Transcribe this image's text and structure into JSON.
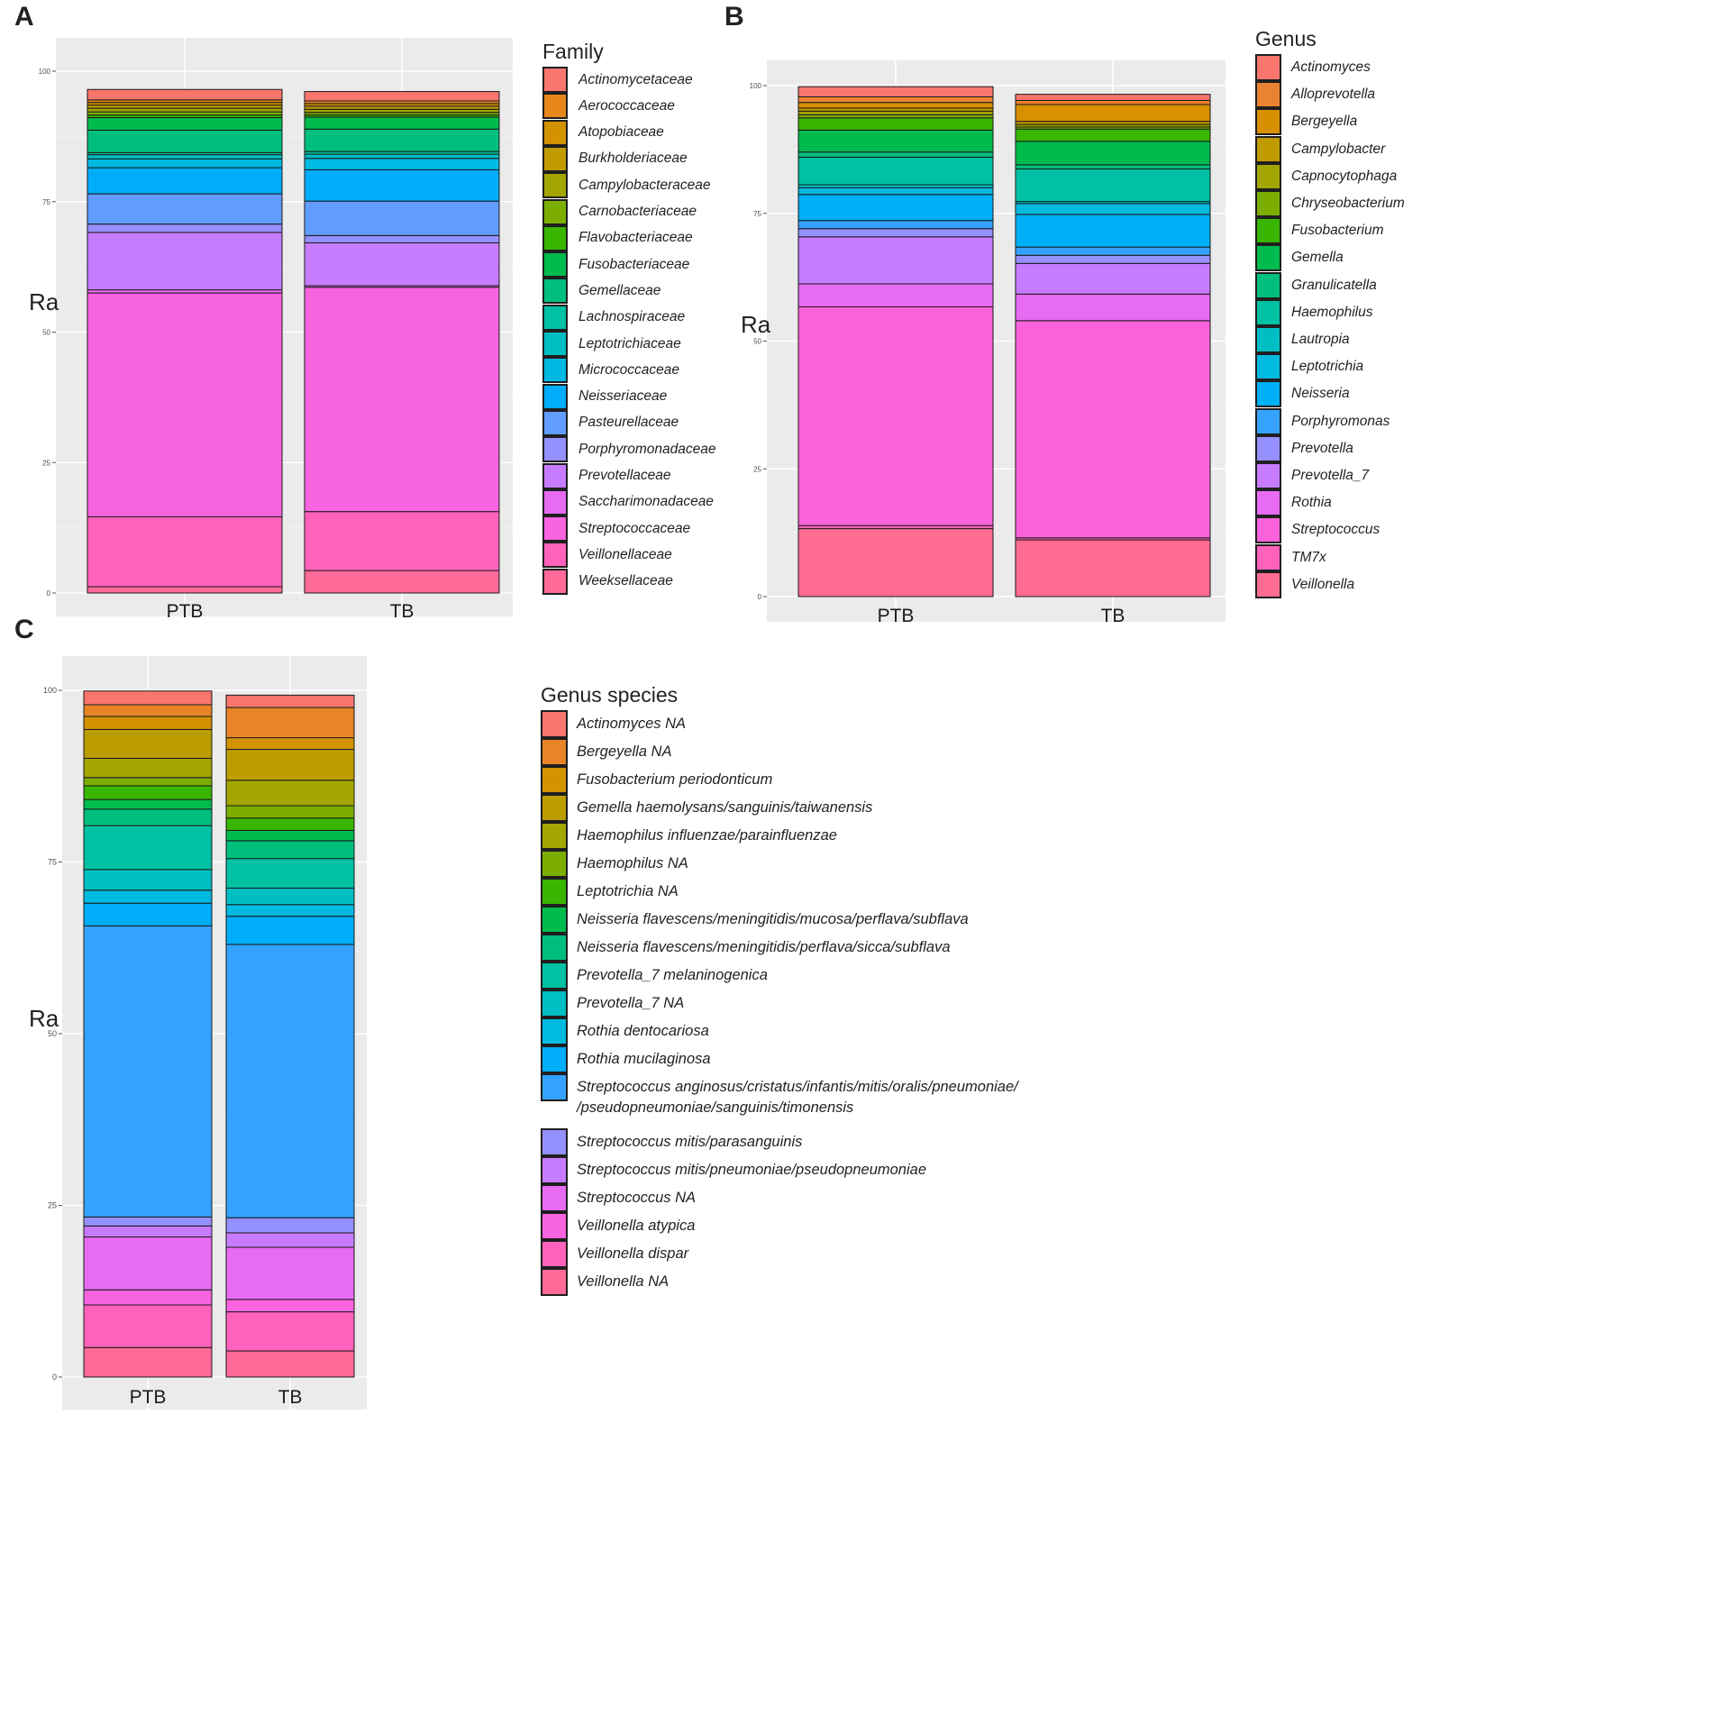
{
  "colors": {
    "a": [
      "#F8766D",
      "#E7861B",
      "#D39200",
      "#C09B00",
      "#A3A500",
      "#7CAE00",
      "#39B600",
      "#00BB4E",
      "#00BF7D",
      "#00C1A3",
      "#00BFC4",
      "#00B9E3",
      "#00ADFA",
      "#619CFF",
      "#9590FF",
      "#C77CFF",
      "#E76BF3",
      "#F863DF",
      "#FF62BC",
      "#FF6A98"
    ],
    "b": [
      "#F8766D",
      "#EA8331",
      "#D89000",
      "#C09B00",
      "#A3A500",
      "#7CAE00",
      "#39B600",
      "#00BB4E",
      "#00BF7D",
      "#00C1A3",
      "#00BFC4",
      "#00BAE0",
      "#00B0F6",
      "#35A2FF",
      "#9590FF",
      "#C77CFF",
      "#E76BF3",
      "#FA62DB",
      "#FF62BC",
      "#FF6C91"
    ],
    "c": [
      "#F8766D",
      "#E88526",
      "#D39200",
      "#BC9D00",
      "#A3A500",
      "#7CAE00",
      "#39B600",
      "#00BB4E",
      "#00BF7D",
      "#00C1A3",
      "#00BFC4",
      "#00BAE0",
      "#00ADFA",
      "#35A2FF",
      "#9590FF",
      "#C77CFF",
      "#E76BF3",
      "#F863DF",
      "#FF62BC",
      "#FF6A98"
    ]
  },
  "chart_data": [
    {
      "panel": "A",
      "type": "bar",
      "stacked": true,
      "ylabel": "Ra",
      "ylim": [
        0,
        100
      ],
      "yticks": [
        "0",
        "25",
        "50",
        "75",
        "100"
      ],
      "categories": [
        "PTB",
        "TB"
      ],
      "legend_title": "Family",
      "series": [
        {
          "name": "Actinomycetaceae",
          "values": [
            2.0,
            1.8
          ]
        },
        {
          "name": "Aerococcaceae",
          "values": [
            0.5,
            0.5
          ]
        },
        {
          "name": "Atopobiaceae",
          "values": [
            0.5,
            0.5
          ]
        },
        {
          "name": "Burkholderiaceae",
          "values": [
            0.6,
            0.6
          ]
        },
        {
          "name": "Campylobacteraceae",
          "values": [
            0.7,
            0.6
          ]
        },
        {
          "name": "Carnobacteriaceae",
          "values": [
            0.6,
            0.5
          ]
        },
        {
          "name": "Flavobacteriaceae",
          "values": [
            0.5,
            0.4
          ]
        },
        {
          "name": "Fusobacteriaceae",
          "values": [
            2.4,
            2.3
          ]
        },
        {
          "name": "Gemellaceae",
          "values": [
            4.3,
            4.3
          ]
        },
        {
          "name": "Lachnospiraceae",
          "values": [
            0.4,
            0.5
          ]
        },
        {
          "name": "Leptotrichiaceae",
          "values": [
            0.8,
            0.8
          ]
        },
        {
          "name": "Micrococcaceae",
          "values": [
            1.7,
            2.2
          ]
        },
        {
          "name": "Neisseriaceae",
          "values": [
            5.0,
            6.0
          ]
        },
        {
          "name": "Pasteurellaceae",
          "values": [
            5.8,
            6.6
          ]
        },
        {
          "name": "Porphyromonadaceae",
          "values": [
            1.6,
            1.4
          ]
        },
        {
          "name": "Prevotellaceae",
          "values": [
            11.0,
            8.2
          ]
        },
        {
          "name": "Saccharimonadaceae",
          "values": [
            0.6,
            0.3
          ]
        },
        {
          "name": "Streptococcaceae",
          "values": [
            42.9,
            43.0
          ]
        },
        {
          "name": "Veillonellaceae",
          "values": [
            13.4,
            11.3
          ]
        },
        {
          "name": "Weeksellaceae",
          "values": [
            1.2,
            4.3
          ]
        }
      ]
    },
    {
      "panel": "B",
      "type": "bar",
      "stacked": true,
      "ylabel": "Ra",
      "ylim": [
        0,
        100
      ],
      "yticks": [
        "0",
        "25",
        "50",
        "75",
        "100"
      ],
      "categories": [
        "PTB",
        "TB"
      ],
      "legend_title": "Genus",
      "series": [
        {
          "name": "Actinomyces",
          "values": [
            2.0,
            1.2
          ]
        },
        {
          "name": "Alloprevotella",
          "values": [
            1.1,
            0.8
          ]
        },
        {
          "name": "Bergeyella",
          "values": [
            1.1,
            3.3
          ]
        },
        {
          "name": "Campylobacter",
          "values": [
            0.6,
            0.6
          ]
        },
        {
          "name": "Capnocytophaga",
          "values": [
            0.7,
            0.5
          ]
        },
        {
          "name": "Chryseobacterium",
          "values": [
            0.6,
            0.4
          ]
        },
        {
          "name": "Fusobacterium",
          "values": [
            2.4,
            2.4
          ]
        },
        {
          "name": "Gemella",
          "values": [
            4.3,
            4.6
          ]
        },
        {
          "name": "Granulicatella",
          "values": [
            1.0,
            0.8
          ]
        },
        {
          "name": "Haemophilus",
          "values": [
            5.4,
            6.4
          ]
        },
        {
          "name": "Lautropia",
          "values": [
            0.6,
            0.4
          ]
        },
        {
          "name": "Leptotrichia",
          "values": [
            1.3,
            2.1
          ]
        },
        {
          "name": "Neisseria",
          "values": [
            5.1,
            6.4
          ]
        },
        {
          "name": "Porphyromonas",
          "values": [
            1.6,
            1.6
          ]
        },
        {
          "name": "Prevotella",
          "values": [
            1.6,
            1.6
          ]
        },
        {
          "name": "Prevotella_7",
          "values": [
            9.2,
            6.0
          ]
        },
        {
          "name": "Rothia",
          "values": [
            4.5,
            5.2
          ]
        },
        {
          "name": "Streptococcus",
          "values": [
            42.8,
            42.5
          ]
        },
        {
          "name": "TM7x",
          "values": [
            0.6,
            0.4
          ]
        },
        {
          "name": "Veillonella",
          "values": [
            13.3,
            11.1
          ]
        }
      ]
    },
    {
      "panel": "C",
      "type": "bar",
      "stacked": true,
      "ylabel": "Ra",
      "ylim": [
        0,
        100
      ],
      "yticks": [
        "0",
        "25",
        "50",
        "75",
        "100"
      ],
      "categories": [
        "PTB",
        "TB"
      ],
      "legend_title": "Genus species",
      "series": [
        {
          "name": "Actinomyces NA",
          "values": [
            2.0,
            1.8
          ],
          "label": "Actinomyces NA"
        },
        {
          "name": "Bergeyella NA",
          "values": [
            1.7,
            4.4
          ],
          "label": "Bergeyella NA"
        },
        {
          "name": "Fusobacterium periodonticum",
          "values": [
            1.9,
            1.7
          ],
          "label": "Fusobacterium periodonticum"
        },
        {
          "name": "Gemella haemolysans/sanguinis/taiwanensis",
          "values": [
            4.2,
            4.5
          ],
          "label": "Gemella haemolysans/sanguinis/taiwanensis"
        },
        {
          "name": "Haemophilus influenzae/parainfluenzae",
          "values": [
            2.8,
            3.7
          ],
          "label": "Haemophilus influenzae/parainfluenzae"
        },
        {
          "name": "Haemophilus NA",
          "values": [
            1.2,
            1.8
          ],
          "label": "Haemophilus NA"
        },
        {
          "name": "Leptotrichia NA",
          "values": [
            2.0,
            1.8
          ],
          "label": "Leptotrichia NA"
        },
        {
          "name": "Neisseria flavescens/meningitidis/mucosa/perflava/subflava",
          "values": [
            1.4,
            1.5
          ],
          "label": "Neisseria flavescens/meningitidis/mucosa/perflava/subflava"
        },
        {
          "name": "Neisseria flavescens/meningitidis/perflava/sicca/subflava",
          "values": [
            2.4,
            2.6
          ],
          "label": "Neisseria flavescens/meningitidis/perflava/sicca/subflava"
        },
        {
          "name": "Prevotella_7 melaninogenica",
          "values": [
            6.4,
            4.3
          ],
          "label": "Prevotella_7 melaninogenica"
        },
        {
          "name": "Prevotella_7 NA",
          "values": [
            3.0,
            2.4
          ],
          "label": "Prevotella_7 NA"
        },
        {
          "name": "Rothia dentocariosa",
          "values": [
            1.9,
            1.7
          ],
          "label": "Rothia dentocariosa"
        },
        {
          "name": "Rothia mucilaginosa",
          "values": [
            3.3,
            4.1
          ],
          "label": "Rothia mucilaginosa"
        },
        {
          "name": "Streptococcus anginosus/cristatus/infantis/mitis/oralis/pneumoniae//pseudopneumoniae/sanguinis/timonensis",
          "values": [
            42.4,
            39.8
          ],
          "label": "Streptococcus anginosus/cristatus/infantis/mitis/oralis/pneumoniae/",
          "label2": "/pseudopneumoniae/sanguinis/timonensis"
        },
        {
          "name": "Streptococcus mitis/parasanguinis",
          "values": [
            1.3,
            2.2
          ],
          "label": "Streptococcus mitis/parasanguinis"
        },
        {
          "name": "Streptococcus mitis/pneumoniae/pseudopneumoniae",
          "values": [
            1.6,
            2.1
          ],
          "label": "Streptococcus mitis/pneumoniae/pseudopneumoniae"
        },
        {
          "name": "Streptococcus NA",
          "values": [
            7.7,
            7.6
          ],
          "label": "Streptococcus NA"
        },
        {
          "name": "Veillonella atypica",
          "values": [
            2.2,
            1.8
          ],
          "label": "Veillonella atypica"
        },
        {
          "name": "Veillonella dispar",
          "values": [
            6.2,
            5.7
          ],
          "label": "Veillonella dispar"
        },
        {
          "name": "Veillonella NA",
          "values": [
            4.3,
            3.8
          ],
          "label": "Veillonella NA"
        }
      ]
    }
  ]
}
